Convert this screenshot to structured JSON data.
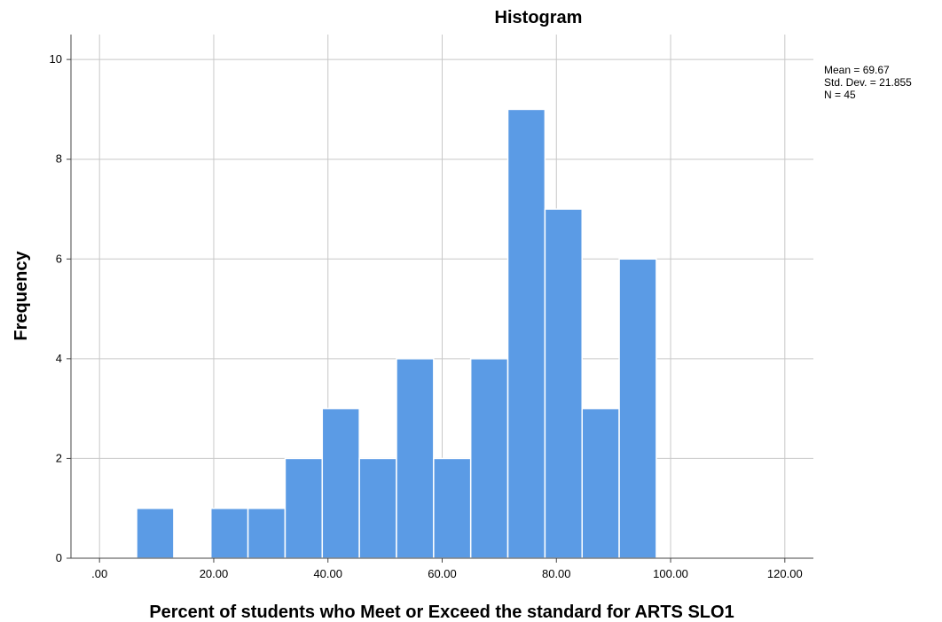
{
  "chart_data": {
    "type": "bar",
    "subtype": "histogram",
    "title": "Histogram",
    "xlabel": "Percent of students who Meet or Exceed the standard for ARTS SLO1",
    "ylabel": "Frequency",
    "xlim": [
      -5,
      125
    ],
    "ylim": [
      0,
      10.5
    ],
    "x_ticks": [
      0,
      20,
      40,
      60,
      80,
      100,
      120
    ],
    "x_tick_labels": [
      ".00",
      "20.00",
      "40.00",
      "60.00",
      "80.00",
      "100.00",
      "120.00"
    ],
    "y_ticks": [
      0,
      2,
      4,
      6,
      8,
      10
    ],
    "y_tick_labels": [
      "0",
      "2",
      "4",
      "6",
      "8",
      "10"
    ],
    "bin_width": 6.5,
    "bins": [
      {
        "x0": 6.5,
        "x1": 13.0,
        "count": 1
      },
      {
        "x0": 13.0,
        "x1": 19.5,
        "count": 0
      },
      {
        "x0": 19.5,
        "x1": 26.0,
        "count": 1
      },
      {
        "x0": 26.0,
        "x1": 32.5,
        "count": 1
      },
      {
        "x0": 32.5,
        "x1": 39.0,
        "count": 2
      },
      {
        "x0": 39.0,
        "x1": 45.5,
        "count": 3
      },
      {
        "x0": 45.5,
        "x1": 52.0,
        "count": 2
      },
      {
        "x0": 52.0,
        "x1": 58.5,
        "count": 4
      },
      {
        "x0": 58.5,
        "x1": 65.0,
        "count": 2
      },
      {
        "x0": 65.0,
        "x1": 71.5,
        "count": 4
      },
      {
        "x0": 71.5,
        "x1": 78.0,
        "count": 9
      },
      {
        "x0": 78.0,
        "x1": 84.5,
        "count": 7
      },
      {
        "x0": 84.5,
        "x1": 91.0,
        "count": 3
      },
      {
        "x0": 91.0,
        "x1": 97.5,
        "count": 6
      }
    ],
    "grid": true,
    "bar_color": "#5b9be5",
    "stats": {
      "mean_label": "Mean = 69.67",
      "std_label": "Std. Dev. = 21.855",
      "n_label": "N = 45"
    }
  }
}
